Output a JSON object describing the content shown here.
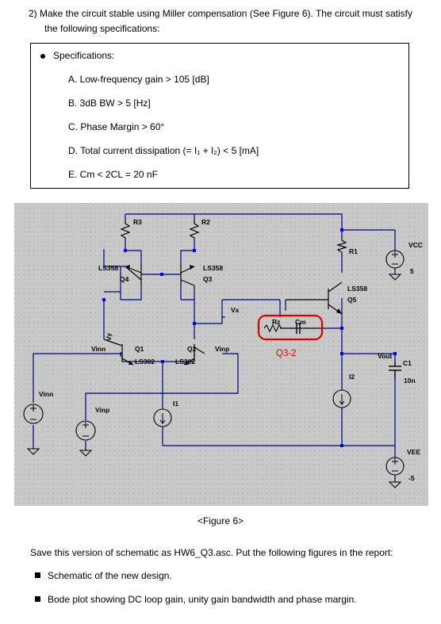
{
  "question": {
    "line1": "2) Make the circuit stable using Miller compensation (See Figure 6). The circuit must satisfy",
    "line2": "the following specifications:"
  },
  "specs": {
    "title": "Specifications:",
    "items": [
      "A. Low-frequency gain > 105 [dB]",
      "B. 3dB BW > 5 [Hz]",
      "C. Phase Margin > 60°",
      "D. Total current dissipation (= I₁ + I₂) < 5 [mA]",
      "E. Cm < 2CL = 20 nF"
    ]
  },
  "schematic": {
    "labels": {
      "r3": "R3",
      "r2": "R2",
      "r1": "R1",
      "vcc": "VCC",
      "vcc_val": "5",
      "q4_model": "LS358",
      "q4": "Q4",
      "q3_model": "LS358",
      "q3": "Q3",
      "q5_model": "LS358",
      "q5": "Q5",
      "vy": "Vy",
      "vx": "Vx",
      "rz": "Rz",
      "cm": "Cm",
      "highlight": "Q3-2",
      "vinn_node": "Vinn",
      "q1": "Q1",
      "q1_model": "LS302",
      "q2": "Q2",
      "q2_model": "LS302",
      "vinp_node": "Vinp",
      "vout": "Vout",
      "c1": "C1",
      "c1_val": "10n",
      "i2": "I2",
      "i1": "I1",
      "vinn_src": "Vinn",
      "vinp_src": "Vinp",
      "vee": "VEE",
      "vee_val": "-5"
    },
    "colors": {
      "background": "#c8c8c8",
      "dots": "#a6a6a6",
      "wire": "#000080",
      "node": "#0000ff",
      "highlight": "#e00000"
    }
  },
  "caption": "<Figure 6>",
  "save_text": "Save this version of schematic as HW6_Q3.asc. Put the following figures in the report:",
  "report_items": [
    "Schematic of the new design.",
    "Bode plot showing DC loop gain, unity gain bandwidth and phase margin."
  ]
}
